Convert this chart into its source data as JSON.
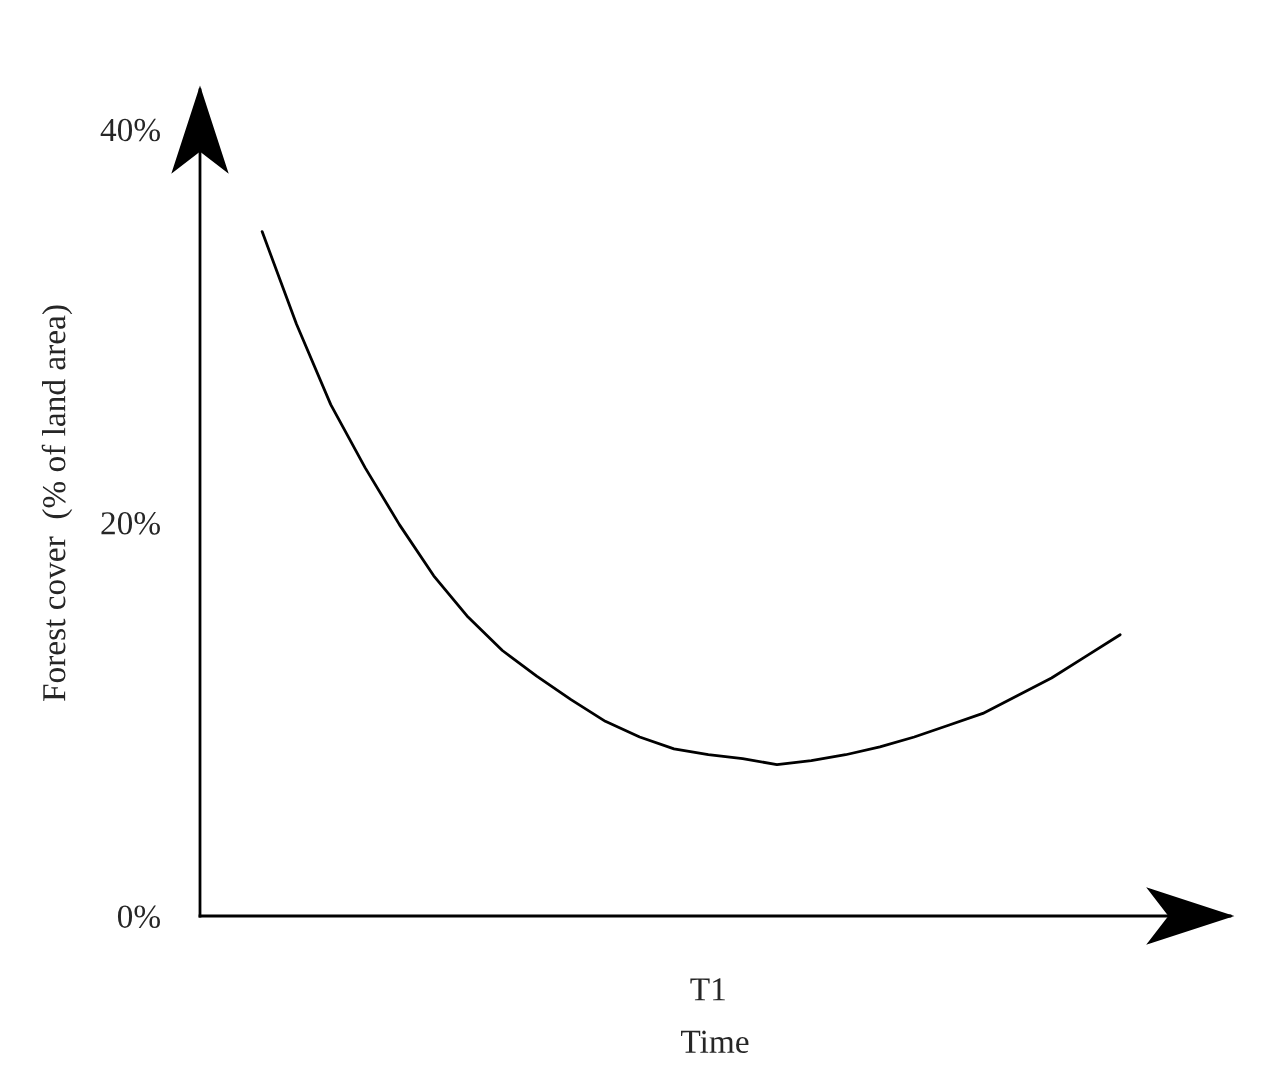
{
  "chart_data": {
    "type": "line",
    "xlabel": "Time",
    "ylabel": "Forest cover  (% of land area)",
    "categories": [
      null,
      null,
      null,
      null,
      null,
      null,
      null,
      null,
      null,
      null,
      null,
      null,
      null,
      "T1",
      null,
      null,
      null,
      null,
      null,
      null,
      null,
      null,
      null,
      null,
      null,
      null
    ],
    "series": [
      {
        "color": "#000000",
        "values": [
          34.8,
          30.1,
          26.0,
          22.8,
          19.9,
          17.3,
          15.2,
          13.5,
          12.2,
          11.0,
          9.9,
          9.1,
          8.5,
          8.2,
          8.0,
          7.7,
          7.9,
          8.2,
          8.6,
          9.1,
          9.7,
          10.3,
          11.2,
          12.1,
          13.2,
          14.3
        ]
      }
    ],
    "ylim": [
      0,
      42
    ],
    "yticks": [
      {
        "value": 0,
        "label": "0%"
      },
      {
        "value": 20,
        "label": "20%"
      },
      {
        "value": 40,
        "label": "40%"
      }
    ],
    "grid": false,
    "legend": false,
    "marker": "none",
    "line_style": "solid"
  }
}
